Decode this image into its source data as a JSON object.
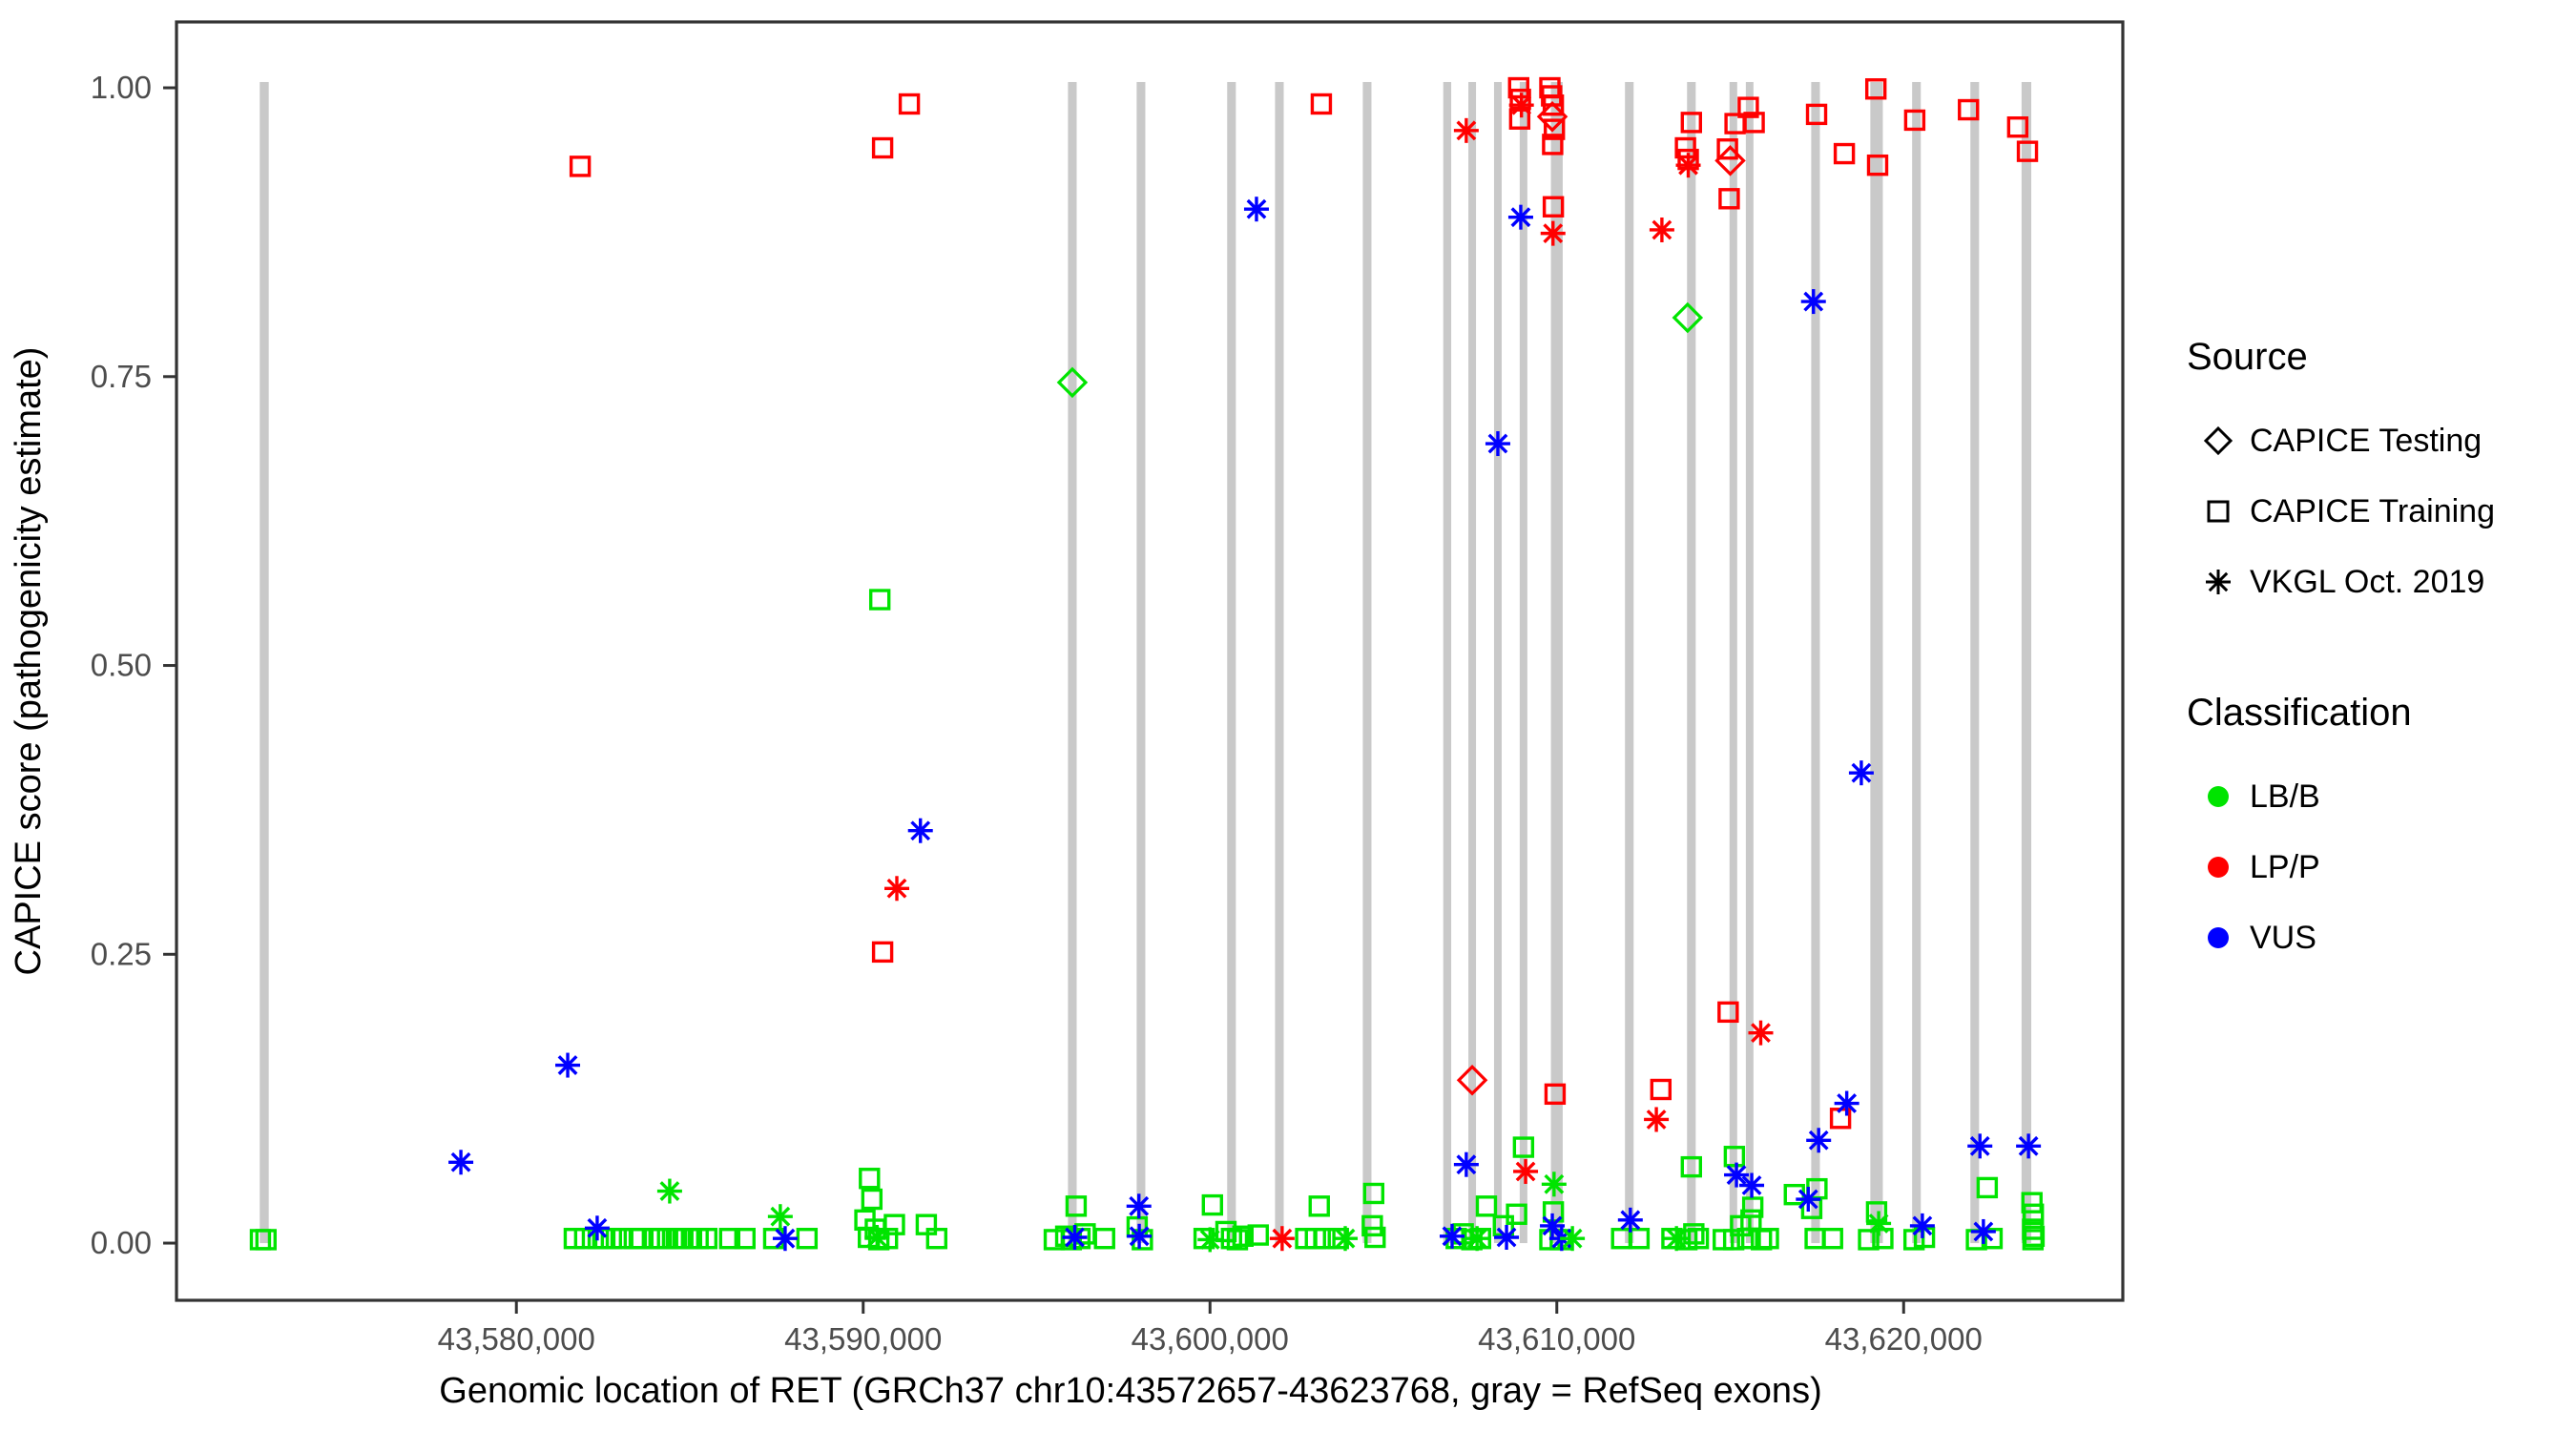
{
  "chart_data": {
    "type": "scatter",
    "title": "",
    "xlabel": "Genomic location of RET (GRCh37 chr10:43572657-43623768, gray = RefSeq exons)",
    "ylabel": "CAPICE score (pathogenicity estimate)",
    "xlim": [
      43570200,
      43626320
    ],
    "ylim": [
      -0.0495,
      1.057
    ],
    "grid": false,
    "x_ticks": [
      {
        "value": 43580000,
        "label": "43,580,000"
      },
      {
        "value": 43590000,
        "label": "43,590,000"
      },
      {
        "value": 43600000,
        "label": "43,600,000"
      },
      {
        "value": 43610000,
        "label": "43,610,000"
      },
      {
        "value": 43620000,
        "label": "43,620,000"
      }
    ],
    "y_ticks": [
      {
        "value": 0.0,
        "label": "0.00"
      },
      {
        "value": 0.25,
        "label": "0.25"
      },
      {
        "value": 0.5,
        "label": "0.50"
      },
      {
        "value": 0.75,
        "label": "0.75"
      },
      {
        "value": 1.0,
        "label": "1.00"
      }
    ],
    "exon_color": "#c9c9c9",
    "exon_top_score": 1.005,
    "exons": [
      {
        "center": 43572730,
        "width_bp": 260
      },
      {
        "center": 43596030,
        "width_bp": 250
      },
      {
        "center": 43598010,
        "width_bp": 250
      },
      {
        "center": 43600620,
        "width_bp": 250
      },
      {
        "center": 43602000,
        "width_bp": 250
      },
      {
        "center": 43604530,
        "width_bp": 250
      },
      {
        "center": 43606840,
        "width_bp": 230
      },
      {
        "center": 43607560,
        "width_bp": 220
      },
      {
        "center": 43608300,
        "width_bp": 220
      },
      {
        "center": 43609040,
        "width_bp": 220
      },
      {
        "center": 43610000,
        "width_bp": 340
      },
      {
        "center": 43612090,
        "width_bp": 250
      },
      {
        "center": 43613880,
        "width_bp": 250
      },
      {
        "center": 43615090,
        "width_bp": 220
      },
      {
        "center": 43615560,
        "width_bp": 220
      },
      {
        "center": 43617460,
        "width_bp": 250
      },
      {
        "center": 43619220,
        "width_bp": 360
      },
      {
        "center": 43620370,
        "width_bp": 250
      },
      {
        "center": 43622050,
        "width_bp": 250
      },
      {
        "center": 43623540,
        "width_bp": 280
      }
    ],
    "classification_colors": {
      "LB/B": "#00e400",
      "LP/P": "#ff0000",
      "VUS": "#0000ff"
    },
    "series": [
      {
        "name": "CAPICE Testing",
        "shape": "diamond",
        "points": [
          [
            43596030,
            0.745,
            "LB/B"
          ],
          [
            43613770,
            0.801,
            "LB/B"
          ],
          [
            43607560,
            0.141,
            "LP/P"
          ],
          [
            43609870,
            0.975,
            "LP/P"
          ],
          [
            43615000,
            0.937,
            "LP/P"
          ]
        ]
      },
      {
        "name": "CAPICE Training",
        "shape": "square",
        "points": [
          [
            43572620,
            0.003,
            "LB/B"
          ],
          [
            43572780,
            0.003,
            "LB/B"
          ],
          [
            43581670,
            0.004,
            "LB/B"
          ],
          [
            43581970,
            0.004,
            "LB/B"
          ],
          [
            43582360,
            0.004,
            "LB/B"
          ],
          [
            43582550,
            0.004,
            "LB/B"
          ],
          [
            43582740,
            0.004,
            "LB/B"
          ],
          [
            43583020,
            0.004,
            "LB/B"
          ],
          [
            43583400,
            0.004,
            "LB/B"
          ],
          [
            43583590,
            0.004,
            "LB/B"
          ],
          [
            43583980,
            0.004,
            "LB/B"
          ],
          [
            43584170,
            0.004,
            "LB/B"
          ],
          [
            43584360,
            0.004,
            "LB/B"
          ],
          [
            43584610,
            0.004,
            "LB/B"
          ],
          [
            43584800,
            0.004,
            "LB/B"
          ],
          [
            43585050,
            0.004,
            "LB/B"
          ],
          [
            43585240,
            0.004,
            "LB/B"
          ],
          [
            43585490,
            0.004,
            "LB/B"
          ],
          [
            43586150,
            0.004,
            "LB/B"
          ],
          [
            43586590,
            0.004,
            "LB/B"
          ],
          [
            43587420,
            0.004,
            "LB/B"
          ],
          [
            43588380,
            0.004,
            "LB/B"
          ],
          [
            43590050,
            0.02,
            "LB/B"
          ],
          [
            43590150,
            0.005,
            "LB/B"
          ],
          [
            43590180,
            0.056,
            "LB/B"
          ],
          [
            43590250,
            0.038,
            "LB/B"
          ],
          [
            43590350,
            0.012,
            "LB/B"
          ],
          [
            43590450,
            0.003,
            "LB/B"
          ],
          [
            43590480,
            0.557,
            "LB/B"
          ],
          [
            43590700,
            0.004,
            "LB/B"
          ],
          [
            43590900,
            0.016,
            "LB/B"
          ],
          [
            43591820,
            0.016,
            "LB/B"
          ],
          [
            43592120,
            0.004,
            "LB/B"
          ],
          [
            43595510,
            0.003,
            "LB/B"
          ],
          [
            43595840,
            0.006,
            "LB/B"
          ],
          [
            43596000,
            0.003,
            "LB/B"
          ],
          [
            43596140,
            0.032,
            "LB/B"
          ],
          [
            43596250,
            0.004,
            "LB/B"
          ],
          [
            43596400,
            0.008,
            "LB/B"
          ],
          [
            43596960,
            0.004,
            "LB/B"
          ],
          [
            43597900,
            0.014,
            "LB/B"
          ],
          [
            43598050,
            0.003,
            "LB/B"
          ],
          [
            43599830,
            0.004,
            "LB/B"
          ],
          [
            43600070,
            0.033,
            "LB/B"
          ],
          [
            43600460,
            0.01,
            "LB/B"
          ],
          [
            43600620,
            0.004,
            "LB/B"
          ],
          [
            43600790,
            0.003,
            "LB/B"
          ],
          [
            43600950,
            0.006,
            "LB/B"
          ],
          [
            43601390,
            0.007,
            "LB/B"
          ],
          [
            43602760,
            0.004,
            "LB/B"
          ],
          [
            43603040,
            0.004,
            "LB/B"
          ],
          [
            43603150,
            0.032,
            "LB/B"
          ],
          [
            43603310,
            0.004,
            "LB/B"
          ],
          [
            43603700,
            0.004,
            "LB/B"
          ],
          [
            43604680,
            0.015,
            "LB/B"
          ],
          [
            43604720,
            0.043,
            "LB/B"
          ],
          [
            43604760,
            0.005,
            "LB/B"
          ],
          [
            43607100,
            0.004,
            "LB/B"
          ],
          [
            43607300,
            0.008,
            "LB/B"
          ],
          [
            43607550,
            0.003,
            "LB/B"
          ],
          [
            43607800,
            0.004,
            "LB/B"
          ],
          [
            43607970,
            0.032,
            "LB/B"
          ],
          [
            43608460,
            0.015,
            "LB/B"
          ],
          [
            43608840,
            0.025,
            "LB/B"
          ],
          [
            43609040,
            0.083,
            "LB/B"
          ],
          [
            43609800,
            0.003,
            "LB/B"
          ],
          [
            43609900,
            0.027,
            "LB/B"
          ],
          [
            43610100,
            0.003,
            "LB/B"
          ],
          [
            43611870,
            0.004,
            "LB/B"
          ],
          [
            43612370,
            0.004,
            "LB/B"
          ],
          [
            43613320,
            0.004,
            "LB/B"
          ],
          [
            43613750,
            0.003,
            "LB/B"
          ],
          [
            43613880,
            0.066,
            "LB/B"
          ],
          [
            43613950,
            0.008,
            "LB/B"
          ],
          [
            43614080,
            0.004,
            "LB/B"
          ],
          [
            43614800,
            0.003,
            "LB/B"
          ],
          [
            43615100,
            0.003,
            "LB/B"
          ],
          [
            43615120,
            0.075,
            "LB/B"
          ],
          [
            43615300,
            0.015,
            "LB/B"
          ],
          [
            43615500,
            0.004,
            "LB/B"
          ],
          [
            43615600,
            0.02,
            "LB/B"
          ],
          [
            43615650,
            0.031,
            "LB/B"
          ],
          [
            43615900,
            0.003,
            "LB/B"
          ],
          [
            43616100,
            0.004,
            "LB/B"
          ],
          [
            43616850,
            0.042,
            "LB/B"
          ],
          [
            43617350,
            0.03,
            "LB/B"
          ],
          [
            43617450,
            0.004,
            "LB/B"
          ],
          [
            43617500,
            0.047,
            "LB/B"
          ],
          [
            43617950,
            0.004,
            "LB/B"
          ],
          [
            43618990,
            0.003,
            "LB/B"
          ],
          [
            43619220,
            0.027,
            "LB/B"
          ],
          [
            43619400,
            0.004,
            "LB/B"
          ],
          [
            43620300,
            0.003,
            "LB/B"
          ],
          [
            43620600,
            0.005,
            "LB/B"
          ],
          [
            43622100,
            0.003,
            "LB/B"
          ],
          [
            43622410,
            0.048,
            "LB/B"
          ],
          [
            43622550,
            0.004,
            "LB/B"
          ],
          [
            43623700,
            0.035,
            "LB/B"
          ],
          [
            43623720,
            0.012,
            "LB/B"
          ],
          [
            43623730,
            0.003,
            "LB/B"
          ],
          [
            43623740,
            0.025,
            "LB/B"
          ],
          [
            43623760,
            0.006,
            "LB/B"
          ],
          [
            43581840,
            0.932,
            "LP/P"
          ],
          [
            43590560,
            0.948,
            "LP/P"
          ],
          [
            43590560,
            0.252,
            "LP/P"
          ],
          [
            43591330,
            0.986,
            "LP/P"
          ],
          [
            43603210,
            0.986,
            "LP/P"
          ],
          [
            43608900,
            1.0,
            "LP/P"
          ],
          [
            43608950,
            0.99,
            "LP/P"
          ],
          [
            43608930,
            0.973,
            "LP/P"
          ],
          [
            43609800,
            1.0,
            "LP/P"
          ],
          [
            43609850,
            0.993,
            "LP/P"
          ],
          [
            43609900,
            0.985,
            "LP/P"
          ],
          [
            43609930,
            0.964,
            "LP/P"
          ],
          [
            43609880,
            0.951,
            "LP/P"
          ],
          [
            43609900,
            0.897,
            "LP/P"
          ],
          [
            43609950,
            0.129,
            "LP/P"
          ],
          [
            43613000,
            0.133,
            "LP/P"
          ],
          [
            43613880,
            0.97,
            "LP/P"
          ],
          [
            43613710,
            0.948,
            "LP/P"
          ],
          [
            43613790,
            0.938,
            "LP/P"
          ],
          [
            43614920,
            0.947,
            "LP/P"
          ],
          [
            43614970,
            0.904,
            "LP/P"
          ],
          [
            43615140,
            0.969,
            "LP/P"
          ],
          [
            43615520,
            0.983,
            "LP/P"
          ],
          [
            43615690,
            0.97,
            "LP/P"
          ],
          [
            43614940,
            0.2,
            "LP/P"
          ],
          [
            43617490,
            0.977,
            "LP/P"
          ],
          [
            43618290,
            0.943,
            "LP/P"
          ],
          [
            43618180,
            0.108,
            "LP/P"
          ],
          [
            43619200,
            0.999,
            "LP/P"
          ],
          [
            43619250,
            0.933,
            "LP/P"
          ],
          [
            43620320,
            0.972,
            "LP/P"
          ],
          [
            43621870,
            0.981,
            "LP/P"
          ],
          [
            43623290,
            0.966,
            "LP/P"
          ],
          [
            43623570,
            0.945,
            "LP/P"
          ]
        ]
      },
      {
        "name": "VKGL Oct. 2019",
        "shape": "asterisk",
        "points": [
          [
            43578400,
            0.07,
            "VUS"
          ],
          [
            43581480,
            0.154,
            "VUS"
          ],
          [
            43582330,
            0.013,
            "VUS"
          ],
          [
            43587750,
            0.004,
            "VUS"
          ],
          [
            43591650,
            0.357,
            "VUS"
          ],
          [
            43596100,
            0.005,
            "VUS"
          ],
          [
            43597950,
            0.032,
            "VUS"
          ],
          [
            43597960,
            0.006,
            "VUS"
          ],
          [
            43601340,
            0.895,
            "VUS"
          ],
          [
            43606980,
            0.006,
            "VUS"
          ],
          [
            43607390,
            0.068,
            "VUS"
          ],
          [
            43608300,
            0.692,
            "VUS"
          ],
          [
            43608550,
            0.005,
            "VUS"
          ],
          [
            43608960,
            0.888,
            "VUS"
          ],
          [
            43609870,
            0.015,
            "VUS"
          ],
          [
            43610140,
            0.004,
            "VUS"
          ],
          [
            43612120,
            0.02,
            "VUS"
          ],
          [
            43615180,
            0.059,
            "VUS"
          ],
          [
            43615620,
            0.05,
            "VUS"
          ],
          [
            43617250,
            0.038,
            "VUS"
          ],
          [
            43617400,
            0.815,
            "VUS"
          ],
          [
            43617550,
            0.089,
            "VUS"
          ],
          [
            43618360,
            0.121,
            "VUS"
          ],
          [
            43618780,
            0.407,
            "VUS"
          ],
          [
            43620540,
            0.015,
            "VUS"
          ],
          [
            43622200,
            0.084,
            "VUS"
          ],
          [
            43622300,
            0.01,
            "VUS"
          ],
          [
            43623600,
            0.084,
            "VUS"
          ],
          [
            43584420,
            0.045,
            "LB/B"
          ],
          [
            43587610,
            0.023,
            "LB/B"
          ],
          [
            43590400,
            0.005,
            "LB/B"
          ],
          [
            43600000,
            0.003,
            "LB/B"
          ],
          [
            43603900,
            0.004,
            "LB/B"
          ],
          [
            43607700,
            0.004,
            "LB/B"
          ],
          [
            43609920,
            0.051,
            "LB/B"
          ],
          [
            43610450,
            0.004,
            "LB/B"
          ],
          [
            43613450,
            0.004,
            "LB/B"
          ],
          [
            43619280,
            0.017,
            "LB/B"
          ],
          [
            43590970,
            0.307,
            "LP/P"
          ],
          [
            43602080,
            0.004,
            "LP/P"
          ],
          [
            43607390,
            0.963,
            "LP/P"
          ],
          [
            43608980,
            0.985,
            "LP/P"
          ],
          [
            43609100,
            0.062,
            "LP/P"
          ],
          [
            43609890,
            0.874,
            "LP/P"
          ],
          [
            43612870,
            0.107,
            "LP/P"
          ],
          [
            43613030,
            0.877,
            "LP/P"
          ],
          [
            43613790,
            0.933,
            "LP/P"
          ],
          [
            43615880,
            0.182,
            "LP/P"
          ]
        ]
      }
    ]
  },
  "legend": {
    "source": {
      "title": "Source",
      "items": [
        {
          "label": "CAPICE Testing",
          "shape": "diamond"
        },
        {
          "label": "CAPICE Training",
          "shape": "square"
        },
        {
          "label": "VKGL Oct. 2019",
          "shape": "asterisk"
        }
      ]
    },
    "classification": {
      "title": "Classification",
      "items": [
        {
          "label": "LB/B",
          "color": "#00e400"
        },
        {
          "label": "LP/P",
          "color": "#ff0000"
        },
        {
          "label": "VUS",
          "color": "#0000ff"
        }
      ]
    }
  }
}
